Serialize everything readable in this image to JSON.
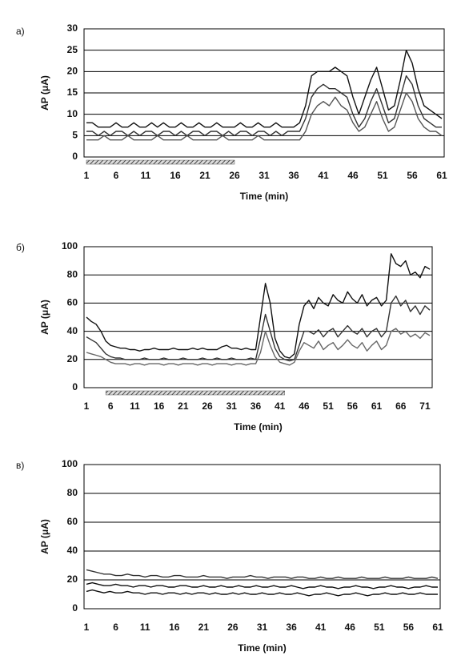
{
  "chart_data": [
    {
      "type": "line",
      "panel_label": "а)",
      "ylabel": "AP (μA)",
      "xlabel": "Time (min)",
      "categories": [
        1,
        null,
        null,
        null,
        null,
        6,
        null,
        null,
        null,
        null,
        11,
        null,
        null,
        null,
        null,
        16,
        null,
        null,
        null,
        null,
        21,
        null,
        null,
        null,
        null,
        26,
        null,
        null,
        null,
        null,
        31,
        null,
        null,
        null,
        null,
        36,
        null,
        null,
        null,
        null,
        41,
        null,
        null,
        null,
        null,
        46,
        null,
        null,
        null,
        null,
        51,
        null,
        null,
        null,
        null,
        56,
        null,
        null,
        null,
        null,
        61
      ],
      "ylim": [
        0,
        30
      ],
      "yticks": [
        0,
        5,
        10,
        15,
        20,
        25,
        30
      ],
      "grid": true,
      "shaded_range": [
        1,
        26
      ],
      "series": [
        {
          "color": "#111111",
          "values": [
            8,
            8,
            7,
            7,
            7,
            8,
            7,
            7,
            8,
            7,
            7,
            8,
            7,
            8,
            7,
            7,
            8,
            7,
            7,
            8,
            7,
            7,
            8,
            7,
            7,
            7,
            8,
            7,
            7,
            8,
            7,
            7,
            8,
            7,
            7,
            7,
            8,
            12,
            19,
            20,
            20,
            20,
            21,
            20,
            19,
            14,
            10,
            14,
            18,
            21,
            16,
            11,
            12,
            18,
            25,
            22,
            16,
            12,
            11,
            10,
            9
          ]
        },
        {
          "color": "#333333",
          "values": [
            6,
            6,
            5,
            6,
            5,
            6,
            6,
            5,
            6,
            5,
            6,
            6,
            5,
            6,
            6,
            5,
            6,
            5,
            6,
            6,
            5,
            6,
            6,
            5,
            6,
            5,
            6,
            6,
            5,
            6,
            6,
            5,
            6,
            5,
            6,
            6,
            6,
            9,
            14,
            16,
            17,
            16,
            16,
            15,
            14,
            10,
            7,
            9,
            13,
            16,
            12,
            8,
            9,
            14,
            19,
            17,
            12,
            9,
            8,
            7,
            7
          ]
        },
        {
          "color": "#555555",
          "values": [
            4,
            4,
            4,
            5,
            4,
            4,
            4,
            5,
            4,
            4,
            4,
            4,
            5,
            4,
            4,
            4,
            4,
            5,
            4,
            4,
            4,
            4,
            4,
            5,
            4,
            4,
            4,
            4,
            4,
            5,
            4,
            4,
            4,
            4,
            4,
            4,
            4,
            6,
            10,
            12,
            13,
            12,
            14,
            12,
            11,
            8,
            6,
            7,
            10,
            13,
            9,
            6,
            7,
            11,
            15,
            13,
            9,
            7,
            6,
            6,
            5
          ]
        }
      ]
    },
    {
      "type": "line",
      "panel_label": "б)",
      "ylabel": "AP (μA)",
      "xlabel": "Time (min)",
      "categories": [
        1,
        null,
        null,
        null,
        null,
        6,
        null,
        null,
        null,
        null,
        11,
        null,
        null,
        null,
        null,
        16,
        null,
        null,
        null,
        null,
        21,
        null,
        null,
        null,
        null,
        26,
        null,
        null,
        null,
        null,
        31,
        null,
        null,
        null,
        null,
        36,
        null,
        null,
        null,
        null,
        41,
        null,
        null,
        null,
        null,
        46,
        null,
        null,
        null,
        null,
        51,
        null,
        null,
        null,
        null,
        56,
        null,
        null,
        null,
        null,
        61,
        null,
        null,
        null,
        null,
        66,
        null,
        null,
        null,
        null,
        71,
        null
      ],
      "ylim": [
        0,
        100
      ],
      "yticks": [
        0,
        20,
        40,
        60,
        80,
        100
      ],
      "grid": true,
      "shaded_range": [
        5,
        42
      ],
      "series": [
        {
          "color": "#111111",
          "values": [
            50,
            47,
            45,
            40,
            33,
            30,
            29,
            28,
            28,
            27,
            27,
            26,
            27,
            27,
            28,
            27,
            27,
            27,
            28,
            27,
            27,
            27,
            28,
            27,
            28,
            27,
            27,
            27,
            29,
            30,
            28,
            28,
            27,
            28,
            27,
            27,
            50,
            74,
            60,
            35,
            26,
            22,
            21,
            24,
            45,
            58,
            62,
            56,
            64,
            60,
            58,
            66,
            62,
            60,
            68,
            63,
            60,
            66,
            58,
            62,
            64,
            58,
            62,
            95,
            88,
            86,
            90,
            80,
            82,
            78,
            86,
            84
          ]
        },
        {
          "color": "#333333",
          "values": [
            36,
            34,
            32,
            28,
            24,
            22,
            21,
            21,
            20,
            20,
            20,
            20,
            21,
            20,
            20,
            20,
            21,
            20,
            20,
            20,
            21,
            20,
            20,
            20,
            21,
            20,
            20,
            21,
            20,
            20,
            21,
            20,
            20,
            20,
            21,
            20,
            35,
            52,
            40,
            28,
            22,
            20,
            19,
            20,
            30,
            40,
            40,
            38,
            41,
            36,
            40,
            42,
            36,
            40,
            44,
            40,
            38,
            42,
            36,
            40,
            42,
            36,
            40,
            60,
            65,
            58,
            62,
            54,
            58,
            52,
            58,
            55
          ]
        },
        {
          "color": "#666666",
          "values": [
            25,
            24,
            23,
            22,
            20,
            18,
            17,
            17,
            17,
            16,
            17,
            17,
            16,
            17,
            17,
            17,
            16,
            17,
            17,
            16,
            17,
            17,
            17,
            16,
            17,
            17,
            16,
            17,
            17,
            17,
            16,
            17,
            17,
            16,
            17,
            17,
            25,
            40,
            30,
            22,
            18,
            17,
            16,
            18,
            26,
            32,
            30,
            28,
            33,
            27,
            30,
            32,
            27,
            30,
            34,
            30,
            28,
            32,
            26,
            30,
            33,
            27,
            30,
            40,
            42,
            38,
            40,
            36,
            38,
            35,
            39,
            37
          ]
        }
      ]
    },
    {
      "type": "line",
      "panel_label": "в)",
      "ylabel": "AP (μA)",
      "xlabel": "Time (min)",
      "categories": [
        1,
        null,
        null,
        null,
        null,
        6,
        null,
        null,
        null,
        null,
        11,
        null,
        null,
        null,
        null,
        16,
        null,
        null,
        null,
        null,
        21,
        null,
        null,
        null,
        null,
        26,
        null,
        null,
        null,
        null,
        31,
        null,
        null,
        null,
        null,
        36,
        null,
        null,
        null,
        null,
        41,
        null,
        null,
        null,
        null,
        46,
        null,
        null,
        null,
        null,
        51,
        null,
        null,
        null,
        null,
        56,
        null,
        null,
        null,
        null,
        61
      ],
      "ylim": [
        0,
        100
      ],
      "yticks": [
        0,
        20,
        40,
        60,
        80,
        100
      ],
      "grid": true,
      "series": [
        {
          "color": "#333333",
          "values": [
            27,
            26,
            25,
            24,
            24,
            23,
            23,
            24,
            23,
            23,
            22,
            23,
            23,
            22,
            22,
            23,
            23,
            22,
            22,
            22,
            23,
            22,
            22,
            22,
            21,
            22,
            22,
            22,
            23,
            22,
            22,
            21,
            22,
            22,
            22,
            21,
            22,
            22,
            21,
            21,
            22,
            21,
            21,
            22,
            21,
            21,
            21,
            22,
            21,
            21,
            21,
            22,
            21,
            21,
            21,
            22,
            21,
            21,
            21,
            22,
            21
          ]
        },
        {
          "color": "#111111",
          "values": [
            17,
            18,
            17,
            16,
            16,
            17,
            16,
            16,
            15,
            16,
            16,
            15,
            16,
            16,
            15,
            15,
            16,
            16,
            15,
            15,
            16,
            15,
            15,
            16,
            15,
            15,
            16,
            15,
            15,
            16,
            15,
            15,
            16,
            15,
            15,
            16,
            15,
            14,
            15,
            15,
            16,
            15,
            15,
            14,
            15,
            15,
            16,
            15,
            15,
            14,
            15,
            15,
            16,
            15,
            15,
            14,
            15,
            15,
            16,
            15,
            15
          ]
        },
        {
          "color": "#111111",
          "values": [
            12,
            13,
            12,
            11,
            12,
            11,
            11,
            12,
            11,
            11,
            10,
            11,
            11,
            10,
            11,
            11,
            10,
            11,
            10,
            11,
            11,
            10,
            11,
            10,
            10,
            11,
            10,
            11,
            10,
            10,
            11,
            10,
            10,
            11,
            10,
            10,
            11,
            10,
            9,
            10,
            10,
            11,
            10,
            9,
            10,
            10,
            11,
            10,
            9,
            10,
            10,
            11,
            10,
            10,
            11,
            10,
            10,
            11,
            10,
            10,
            10
          ]
        }
      ]
    }
  ]
}
